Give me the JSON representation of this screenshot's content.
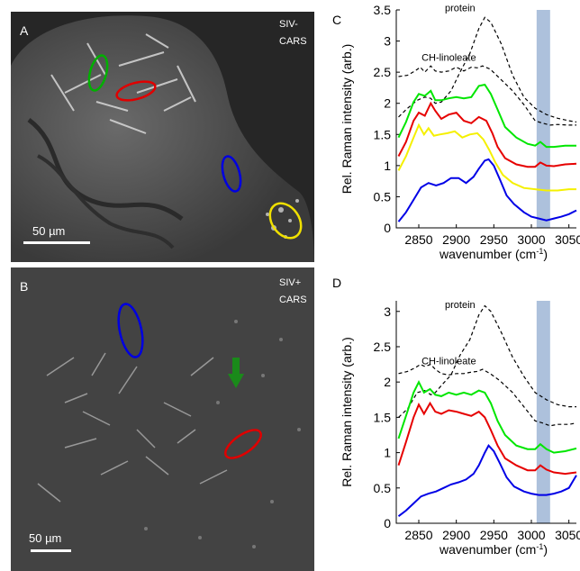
{
  "panels": {
    "A": {
      "letter": "A",
      "note": "SIV-\nCARS",
      "scale_label": "50 µm"
    },
    "B": {
      "letter": "B",
      "note": "SIV+\nCARS",
      "scale_label": "50 µm"
    }
  },
  "colors": {
    "green": "#00e600",
    "red": "#e60000",
    "blue": "#0000e6",
    "yellow": "#f5f000",
    "dashed": "#000000",
    "band": "#9fb6d6",
    "arrow": "#1a8a1a"
  },
  "chart_data": [
    {
      "panel": "C",
      "type": "line",
      "xlabel": "wavenumber",
      "xunit": "(cm-1)",
      "ylabel": "Rel. Raman intensity (arb.)",
      "xlim": [
        2820,
        3060
      ],
      "ylim": [
        0,
        3.5
      ],
      "xticks": [
        2850,
        2900,
        2950,
        3000,
        3050
      ],
      "yticks": [
        0,
        0.5,
        1,
        1.5,
        2,
        2.5,
        3,
        3.5
      ],
      "shaded_band": [
        3007,
        3025
      ],
      "annotations": [
        "protein",
        "CH-linoleate"
      ],
      "series": [
        {
          "color": "dashed",
          "style": "dashed",
          "x": [
            2823,
            2835,
            2848,
            2858,
            2866,
            2872,
            2880,
            2893,
            2905,
            2918,
            2930,
            2938,
            2946,
            2960,
            2975,
            2990,
            3005,
            3020,
            3035,
            3050,
            3060
          ],
          "y": [
            1.78,
            1.92,
            2.05,
            2.1,
            2.08,
            2.0,
            2.02,
            2.2,
            2.5,
            2.8,
            3.2,
            3.38,
            3.3,
            2.95,
            2.45,
            2.1,
            1.92,
            1.82,
            1.76,
            1.72,
            1.7
          ]
        },
        {
          "color": "dashed",
          "style": "dashed",
          "x": [
            2823,
            2835,
            2845,
            2852,
            2858,
            2866,
            2872,
            2880,
            2890,
            2900,
            2910,
            2920,
            2928,
            2935,
            2945,
            2958,
            2975,
            2990,
            3005,
            3015,
            3025,
            3035,
            3050,
            3060
          ],
          "y": [
            2.43,
            2.45,
            2.52,
            2.58,
            2.5,
            2.6,
            2.52,
            2.5,
            2.52,
            2.58,
            2.52,
            2.58,
            2.57,
            2.6,
            2.55,
            2.4,
            2.2,
            1.98,
            1.72,
            1.68,
            1.65,
            1.66,
            1.65,
            1.65
          ]
        },
        {
          "color": "green",
          "style": "solid",
          "x": [
            2823,
            2833,
            2843,
            2850,
            2858,
            2866,
            2872,
            2880,
            2890,
            2900,
            2910,
            2920,
            2930,
            2938,
            2946,
            2955,
            2965,
            2980,
            2995,
            3005,
            3012,
            3020,
            3030,
            3045,
            3060
          ],
          "y": [
            1.45,
            1.7,
            2.02,
            2.15,
            2.12,
            2.2,
            2.05,
            2.05,
            2.08,
            2.1,
            2.08,
            2.1,
            2.28,
            2.3,
            2.15,
            1.9,
            1.62,
            1.45,
            1.35,
            1.32,
            1.38,
            1.3,
            1.3,
            1.32,
            1.32
          ]
        },
        {
          "color": "red",
          "style": "solid",
          "x": [
            2823,
            2833,
            2843,
            2850,
            2858,
            2866,
            2872,
            2880,
            2890,
            2900,
            2910,
            2920,
            2930,
            2940,
            2948,
            2955,
            2965,
            2980,
            2995,
            3005,
            3012,
            3020,
            3030,
            3045,
            3060
          ],
          "y": [
            1.15,
            1.38,
            1.72,
            1.85,
            1.8,
            2.0,
            1.88,
            1.75,
            1.82,
            1.85,
            1.72,
            1.68,
            1.78,
            1.72,
            1.52,
            1.3,
            1.12,
            1.02,
            0.98,
            0.98,
            1.05,
            1.0,
            0.99,
            1.02,
            1.03
          ]
        },
        {
          "color": "yellow",
          "style": "solid",
          "x": [
            2823,
            2833,
            2843,
            2850,
            2857,
            2863,
            2870,
            2878,
            2888,
            2898,
            2908,
            2918,
            2928,
            2936,
            2944,
            2952,
            2962,
            2975,
            2990,
            3005,
            3020,
            3035,
            3050,
            3060
          ],
          "y": [
            0.92,
            1.15,
            1.45,
            1.65,
            1.5,
            1.6,
            1.48,
            1.5,
            1.52,
            1.55,
            1.45,
            1.5,
            1.52,
            1.42,
            1.25,
            1.05,
            0.85,
            0.72,
            0.64,
            0.62,
            0.6,
            0.6,
            0.62,
            0.62
          ]
        },
        {
          "color": "blue",
          "style": "solid",
          "x": [
            2823,
            2833,
            2843,
            2853,
            2863,
            2873,
            2883,
            2893,
            2903,
            2913,
            2923,
            2930,
            2938,
            2943,
            2950,
            2958,
            2967,
            2977,
            2990,
            3000,
            3010,
            3020,
            3030,
            3040,
            3050,
            3060
          ],
          "y": [
            0.1,
            0.25,
            0.45,
            0.65,
            0.72,
            0.68,
            0.72,
            0.8,
            0.8,
            0.72,
            0.82,
            0.95,
            1.08,
            1.1,
            1.0,
            0.78,
            0.52,
            0.38,
            0.25,
            0.18,
            0.15,
            0.12,
            0.15,
            0.18,
            0.22,
            0.28
          ]
        }
      ]
    },
    {
      "panel": "D",
      "type": "line",
      "xlabel": "wavenumber",
      "xunit": "(cm-1)",
      "ylabel": "Rel. Raman intensity (arb.)",
      "xlim": [
        2820,
        3060
      ],
      "ylim": [
        0,
        3.15
      ],
      "xticks": [
        2850,
        2900,
        2950,
        3000,
        3050
      ],
      "yticks": [
        0,
        0.5,
        1,
        1.5,
        2,
        2.5,
        3
      ],
      "shaded_band": [
        3007,
        3025
      ],
      "annotations": [
        "protein",
        "CH-linoleate"
      ],
      "series": [
        {
          "color": "dashed",
          "style": "dashed",
          "x": [
            2823,
            2835,
            2848,
            2858,
            2866,
            2872,
            2880,
            2893,
            2905,
            2918,
            2930,
            2938,
            2946,
            2960,
            2975,
            2990,
            3005,
            3020,
            3035,
            3050,
            3060
          ],
          "y": [
            1.5,
            1.62,
            1.85,
            1.88,
            1.82,
            1.85,
            1.95,
            2.1,
            2.38,
            2.6,
            2.95,
            3.08,
            3.0,
            2.7,
            2.35,
            2.08,
            1.85,
            1.75,
            1.68,
            1.65,
            1.65
          ]
        },
        {
          "color": "dashed",
          "style": "dashed",
          "x": [
            2823,
            2835,
            2845,
            2852,
            2858,
            2866,
            2872,
            2880,
            2890,
            2900,
            2910,
            2920,
            2928,
            2935,
            2945,
            2958,
            2975,
            2990,
            3005,
            3015,
            3025,
            3035,
            3050,
            3060
          ],
          "y": [
            2.12,
            2.15,
            2.2,
            2.25,
            2.22,
            2.25,
            2.18,
            2.12,
            2.1,
            2.12,
            2.12,
            2.14,
            2.15,
            2.18,
            2.12,
            2.02,
            1.85,
            1.65,
            1.45,
            1.42,
            1.38,
            1.4,
            1.4,
            1.42
          ]
        },
        {
          "color": "green",
          "style": "solid",
          "x": [
            2823,
            2833,
            2843,
            2850,
            2857,
            2865,
            2872,
            2880,
            2890,
            2900,
            2910,
            2920,
            2930,
            2938,
            2946,
            2955,
            2965,
            2980,
            2995,
            3005,
            3012,
            3020,
            3030,
            3045,
            3060
          ],
          "y": [
            1.2,
            1.52,
            1.85,
            2.0,
            1.85,
            1.9,
            1.82,
            1.8,
            1.85,
            1.82,
            1.85,
            1.82,
            1.88,
            1.85,
            1.7,
            1.45,
            1.25,
            1.1,
            1.05,
            1.05,
            1.12,
            1.05,
            1.0,
            1.02,
            1.06
          ]
        },
        {
          "color": "red",
          "style": "solid",
          "x": [
            2823,
            2833,
            2843,
            2850,
            2857,
            2865,
            2872,
            2880,
            2890,
            2900,
            2910,
            2920,
            2930,
            2938,
            2946,
            2955,
            2965,
            2980,
            2995,
            3005,
            3012,
            3020,
            3030,
            3045,
            3060
          ],
          "y": [
            0.82,
            1.15,
            1.5,
            1.68,
            1.55,
            1.7,
            1.58,
            1.55,
            1.6,
            1.58,
            1.55,
            1.52,
            1.58,
            1.5,
            1.32,
            1.1,
            0.92,
            0.82,
            0.75,
            0.75,
            0.82,
            0.76,
            0.72,
            0.7,
            0.72
          ]
        },
        {
          "color": "blue",
          "style": "solid",
          "x": [
            2823,
            2833,
            2843,
            2853,
            2863,
            2873,
            2883,
            2893,
            2903,
            2913,
            2923,
            2930,
            2938,
            2943,
            2950,
            2958,
            2967,
            2977,
            2990,
            3000,
            3010,
            3020,
            3030,
            3040,
            3050,
            3060
          ],
          "y": [
            0.1,
            0.18,
            0.28,
            0.38,
            0.42,
            0.45,
            0.5,
            0.55,
            0.58,
            0.62,
            0.7,
            0.82,
            1.0,
            1.1,
            1.02,
            0.85,
            0.65,
            0.52,
            0.45,
            0.42,
            0.4,
            0.4,
            0.42,
            0.45,
            0.5,
            0.68
          ]
        }
      ]
    }
  ]
}
